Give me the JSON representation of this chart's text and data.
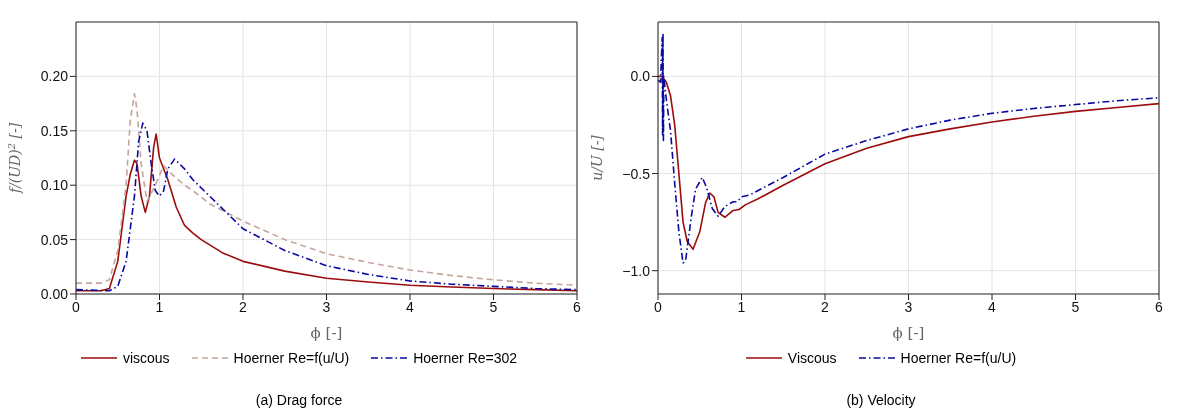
{
  "chart_data": [
    {
      "type": "line",
      "title": "(a) Drag force",
      "xlabel": "ϕ [-]",
      "ylabel": "f/(UD)$^{2}$ [-]",
      "xlim": [
        0,
        6
      ],
      "ylim": [
        0,
        0.25
      ],
      "xticks": [
        0,
        1,
        2,
        3,
        4,
        5,
        6
      ],
      "yticks": [
        {
          "value": 0,
          "label": "0.00"
        },
        {
          "value": 0.05,
          "label": "0.05"
        },
        {
          "value": 0.1,
          "label": "0.10"
        },
        {
          "value": 0.15,
          "label": "0.15"
        },
        {
          "value": 0.2,
          "label": "0.20"
        }
      ],
      "grid": true,
      "legend": "bottom",
      "marker": "none",
      "series": [
        {
          "name": "viscous",
          "color": "#9b0d0d",
          "line_style": "solid",
          "x": [
            0,
            0.3,
            0.4,
            0.5,
            0.6,
            0.65,
            0.7,
            0.73,
            0.78,
            0.83,
            0.88,
            0.93,
            0.96,
            1.0,
            1.1,
            1.2,
            1.3,
            1.4,
            1.5,
            1.75,
            2,
            2.5,
            3,
            3.5,
            4,
            4.5,
            5,
            5.5,
            6
          ],
          "values": [
            0.003,
            0.003,
            0.005,
            0.03,
            0.09,
            0.11,
            0.123,
            0.12,
            0.09,
            0.075,
            0.09,
            0.135,
            0.147,
            0.125,
            0.105,
            0.08,
            0.063,
            0.056,
            0.05,
            0.038,
            0.03,
            0.021,
            0.0145,
            0.011,
            0.008,
            0.0065,
            0.005,
            0.004,
            0.003
          ]
        },
        {
          "name": "Hoerner Re=f(u/U)",
          "color": "#c4a59b",
          "line_style": "dashed",
          "x": [
            0,
            0.3,
            0.4,
            0.5,
            0.6,
            0.65,
            0.7,
            0.73,
            0.78,
            0.85,
            0.95,
            1.05,
            1.15,
            1.3,
            1.4,
            1.6,
            2,
            2.5,
            3,
            3.5,
            4,
            4.5,
            5,
            5.5,
            6
          ],
          "values": [
            0.01,
            0.01,
            0.013,
            0.04,
            0.1,
            0.16,
            0.184,
            0.17,
            0.12,
            0.085,
            0.1,
            0.118,
            0.11,
            0.1,
            0.095,
            0.083,
            0.067,
            0.05,
            0.037,
            0.029,
            0.022,
            0.017,
            0.013,
            0.01,
            0.008
          ]
        },
        {
          "name": "Hoerner Re=302",
          "color": "#0a0aa0",
          "line_style": "dashdot",
          "x": [
            0,
            0.4,
            0.5,
            0.6,
            0.7,
            0.75,
            0.8,
            0.85,
            0.9,
            0.95,
            1.0,
            1.05,
            1.1,
            1.18,
            1.3,
            1.4,
            1.6,
            2,
            2.5,
            3,
            3.5,
            4,
            4.5,
            5,
            5.5,
            6
          ],
          "values": [
            0.004,
            0.003,
            0.007,
            0.03,
            0.09,
            0.14,
            0.157,
            0.15,
            0.12,
            0.095,
            0.09,
            0.095,
            0.115,
            0.124,
            0.115,
            0.105,
            0.09,
            0.06,
            0.04,
            0.026,
            0.018,
            0.012,
            0.009,
            0.007,
            0.005,
            0.004
          ]
        }
      ]
    },
    {
      "type": "line",
      "title": "(b) Velocity",
      "xlabel": "ϕ [-]",
      "ylabel": "u/U [-]",
      "xlim": [
        0,
        6
      ],
      "ylim": [
        -1.12,
        0.28
      ],
      "xticks": [
        0,
        1,
        2,
        3,
        4,
        5,
        6
      ],
      "yticks": [
        {
          "value": -1,
          "label": "−1.0"
        },
        {
          "value": -0.5,
          "label": "−0.5"
        },
        {
          "value": 0,
          "label": "0.0"
        }
      ],
      "grid": true,
      "legend": "bottom",
      "marker": "none",
      "series": [
        {
          "name": "Viscous",
          "color": "#9b0d0d",
          "line_style": "solid",
          "x": [
            0,
            0.05,
            0.1,
            0.15,
            0.2,
            0.25,
            0.3,
            0.35,
            0.42,
            0.5,
            0.57,
            0.62,
            0.67,
            0.72,
            0.8,
            0.9,
            0.97,
            1.05,
            1.2,
            1.5,
            2,
            2.5,
            3,
            3.5,
            4,
            4.5,
            5,
            5.5,
            6
          ],
          "values": [
            0,
            0,
            -0.03,
            -0.1,
            -0.25,
            -0.5,
            -0.75,
            -0.85,
            -0.89,
            -0.8,
            -0.65,
            -0.6,
            -0.62,
            -0.7,
            -0.725,
            -0.69,
            -0.685,
            -0.66,
            -0.63,
            -0.56,
            -0.45,
            -0.37,
            -0.31,
            -0.27,
            -0.235,
            -0.205,
            -0.18,
            -0.16,
            -0.14
          ]
        },
        {
          "name": "Hoerner Re=f(u/U)",
          "color": "#0a0aa0",
          "line_style": "dashdot",
          "x": [
            0,
            0.03,
            0.05,
            0.055,
            0.06,
            0.065,
            0.07,
            0.1,
            0.15,
            0.2,
            0.25,
            0.3,
            0.33,
            0.4,
            0.45,
            0.53,
            0.58,
            0.65,
            0.72,
            0.8,
            0.9,
            0.95,
            1.0,
            1.1,
            1.5,
            2,
            2.5,
            3,
            3.5,
            4,
            4.5,
            5,
            5.5,
            6
          ],
          "values": [
            -0.02,
            -0.03,
            0.2,
            -0.3,
            0.22,
            -0.33,
            0,
            -0.12,
            -0.28,
            -0.55,
            -0.8,
            -0.96,
            -0.95,
            -0.72,
            -0.58,
            -0.52,
            -0.57,
            -0.68,
            -0.72,
            -0.67,
            -0.645,
            -0.645,
            -0.62,
            -0.61,
            -0.52,
            -0.4,
            -0.33,
            -0.27,
            -0.225,
            -0.19,
            -0.165,
            -0.145,
            -0.125,
            -0.11
          ]
        }
      ]
    }
  ]
}
